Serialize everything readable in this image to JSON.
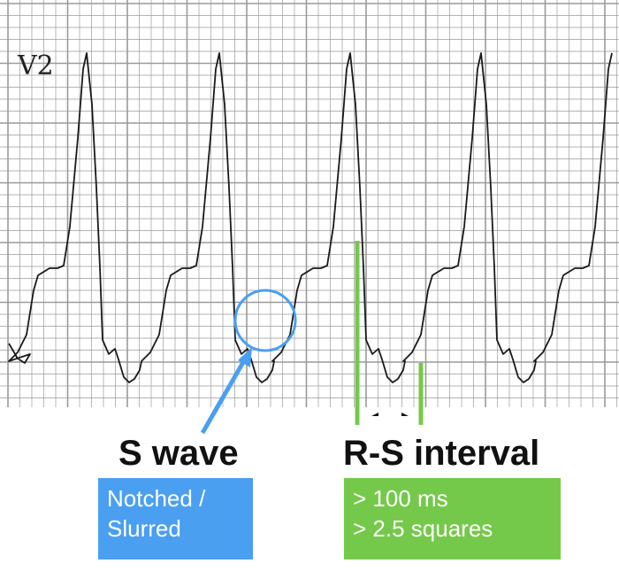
{
  "lead": "V2",
  "annotations": {
    "s_wave": {
      "title": "S wave",
      "box_lines": [
        "Notched /",
        "Slurred"
      ],
      "color": "#4a9ff0"
    },
    "rs_interval": {
      "title": "R-S interval",
      "box_lines": [
        "> 100 ms",
        "> 2.5 squares"
      ],
      "color": "#75c94a"
    }
  },
  "colors": {
    "grid": "#9a9a9a",
    "trace": "#1a1a1a",
    "background": "#ffffff"
  }
}
